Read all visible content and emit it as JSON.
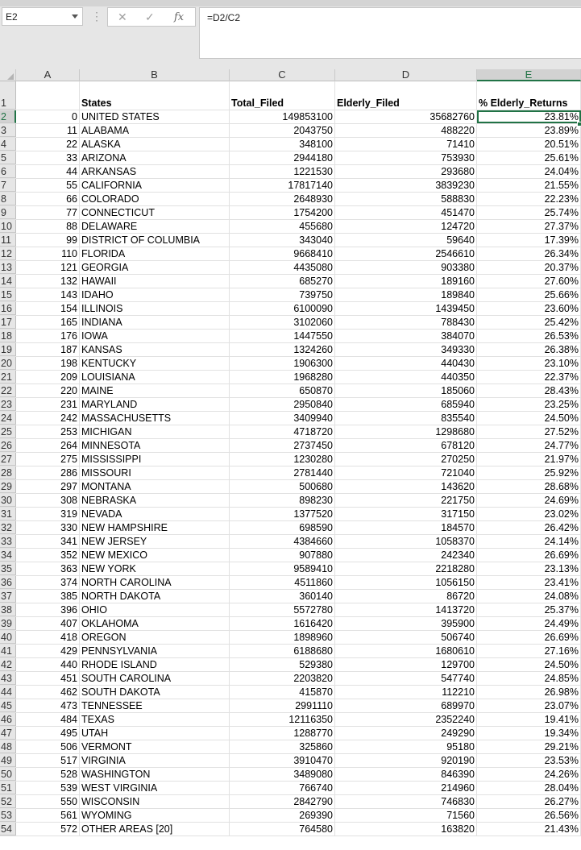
{
  "formula_bar": {
    "name_box": "E2",
    "formula": "=D2/C2",
    "cancel_icon": "✕",
    "enter_icon": "✓",
    "fx_label": "fx",
    "menu_icon": "⋮"
  },
  "columns": [
    "A",
    "B",
    "C",
    "D",
    "E"
  ],
  "active_column": "E",
  "active_row": 2,
  "header_row": {
    "row_number": "1",
    "A": "",
    "B": "States",
    "C": "Total_Filed",
    "D": "Elderly_Filed",
    "E": "% Elderly_Returns"
  },
  "rows": [
    {
      "n": "2",
      "a": "0",
      "b": "UNITED STATES",
      "c": "149853100",
      "d": "35682760",
      "e": "23.81%"
    },
    {
      "n": "3",
      "a": "11",
      "b": "ALABAMA",
      "c": "2043750",
      "d": "488220",
      "e": "23.89%"
    },
    {
      "n": "4",
      "a": "22",
      "b": "ALASKA",
      "c": "348100",
      "d": "71410",
      "e": "20.51%"
    },
    {
      "n": "5",
      "a": "33",
      "b": "ARIZONA",
      "c": "2944180",
      "d": "753930",
      "e": "25.61%"
    },
    {
      "n": "6",
      "a": "44",
      "b": "ARKANSAS",
      "c": "1221530",
      "d": "293680",
      "e": "24.04%"
    },
    {
      "n": "7",
      "a": "55",
      "b": "CALIFORNIA",
      "c": "17817140",
      "d": "3839230",
      "e": "21.55%"
    },
    {
      "n": "8",
      "a": "66",
      "b": "COLORADO",
      "c": "2648930",
      "d": "588830",
      "e": "22.23%"
    },
    {
      "n": "9",
      "a": "77",
      "b": "CONNECTICUT",
      "c": "1754200",
      "d": "451470",
      "e": "25.74%"
    },
    {
      "n": "10",
      "a": "88",
      "b": "DELAWARE",
      "c": "455680",
      "d": "124720",
      "e": "27.37%"
    },
    {
      "n": "11",
      "a": "99",
      "b": "DISTRICT OF COLUMBIA",
      "c": "343040",
      "d": "59640",
      "e": "17.39%"
    },
    {
      "n": "12",
      "a": "110",
      "b": "FLORIDA",
      "c": "9668410",
      "d": "2546610",
      "e": "26.34%"
    },
    {
      "n": "13",
      "a": "121",
      "b": "GEORGIA",
      "c": "4435080",
      "d": "903380",
      "e": "20.37%"
    },
    {
      "n": "14",
      "a": "132",
      "b": "HAWAII",
      "c": "685270",
      "d": "189160",
      "e": "27.60%"
    },
    {
      "n": "15",
      "a": "143",
      "b": "IDAHO",
      "c": "739750",
      "d": "189840",
      "e": "25.66%"
    },
    {
      "n": "16",
      "a": "154",
      "b": "ILLINOIS",
      "c": "6100090",
      "d": "1439450",
      "e": "23.60%"
    },
    {
      "n": "17",
      "a": "165",
      "b": "INDIANA",
      "c": "3102060",
      "d": "788430",
      "e": "25.42%"
    },
    {
      "n": "18",
      "a": "176",
      "b": "IOWA",
      "c": "1447550",
      "d": "384070",
      "e": "26.53%"
    },
    {
      "n": "19",
      "a": "187",
      "b": "KANSAS",
      "c": "1324260",
      "d": "349330",
      "e": "26.38%"
    },
    {
      "n": "20",
      "a": "198",
      "b": "KENTUCKY",
      "c": "1906300",
      "d": "440430",
      "e": "23.10%"
    },
    {
      "n": "21",
      "a": "209",
      "b": "LOUISIANA",
      "c": "1968280",
      "d": "440350",
      "e": "22.37%"
    },
    {
      "n": "22",
      "a": "220",
      "b": "MAINE",
      "c": "650870",
      "d": "185060",
      "e": "28.43%"
    },
    {
      "n": "23",
      "a": "231",
      "b": "MARYLAND",
      "c": "2950840",
      "d": "685940",
      "e": "23.25%"
    },
    {
      "n": "24",
      "a": "242",
      "b": "MASSACHUSETTS",
      "c": "3409940",
      "d": "835540",
      "e": "24.50%"
    },
    {
      "n": "25",
      "a": "253",
      "b": "MICHIGAN",
      "c": "4718720",
      "d": "1298680",
      "e": "27.52%"
    },
    {
      "n": "26",
      "a": "264",
      "b": "MINNESOTA",
      "c": "2737450",
      "d": "678120",
      "e": "24.77%"
    },
    {
      "n": "27",
      "a": "275",
      "b": "MISSISSIPPI",
      "c": "1230280",
      "d": "270250",
      "e": "21.97%"
    },
    {
      "n": "28",
      "a": "286",
      "b": "MISSOURI",
      "c": "2781440",
      "d": "721040",
      "e": "25.92%"
    },
    {
      "n": "29",
      "a": "297",
      "b": "MONTANA",
      "c": "500680",
      "d": "143620",
      "e": "28.68%"
    },
    {
      "n": "30",
      "a": "308",
      "b": "NEBRASKA",
      "c": "898230",
      "d": "221750",
      "e": "24.69%"
    },
    {
      "n": "31",
      "a": "319",
      "b": "NEVADA",
      "c": "1377520",
      "d": "317150",
      "e": "23.02%"
    },
    {
      "n": "32",
      "a": "330",
      "b": "NEW HAMPSHIRE",
      "c": "698590",
      "d": "184570",
      "e": "26.42%"
    },
    {
      "n": "33",
      "a": "341",
      "b": "NEW JERSEY",
      "c": "4384660",
      "d": "1058370",
      "e": "24.14%"
    },
    {
      "n": "34",
      "a": "352",
      "b": "NEW MEXICO",
      "c": "907880",
      "d": "242340",
      "e": "26.69%"
    },
    {
      "n": "35",
      "a": "363",
      "b": "NEW YORK",
      "c": "9589410",
      "d": "2218280",
      "e": "23.13%"
    },
    {
      "n": "36",
      "a": "374",
      "b": "NORTH CAROLINA",
      "c": "4511860",
      "d": "1056150",
      "e": "23.41%"
    },
    {
      "n": "37",
      "a": "385",
      "b": "NORTH DAKOTA",
      "c": "360140",
      "d": "86720",
      "e": "24.08%"
    },
    {
      "n": "38",
      "a": "396",
      "b": "OHIO",
      "c": "5572780",
      "d": "1413720",
      "e": "25.37%"
    },
    {
      "n": "39",
      "a": "407",
      "b": "OKLAHOMA",
      "c": "1616420",
      "d": "395900",
      "e": "24.49%"
    },
    {
      "n": "40",
      "a": "418",
      "b": "OREGON",
      "c": "1898960",
      "d": "506740",
      "e": "26.69%"
    },
    {
      "n": "41",
      "a": "429",
      "b": "PENNSYLVANIA",
      "c": "6188680",
      "d": "1680610",
      "e": "27.16%"
    },
    {
      "n": "42",
      "a": "440",
      "b": "RHODE ISLAND",
      "c": "529380",
      "d": "129700",
      "e": "24.50%"
    },
    {
      "n": "43",
      "a": "451",
      "b": "SOUTH CAROLINA",
      "c": "2203820",
      "d": "547740",
      "e": "24.85%"
    },
    {
      "n": "44",
      "a": "462",
      "b": "SOUTH DAKOTA",
      "c": "415870",
      "d": "112210",
      "e": "26.98%"
    },
    {
      "n": "45",
      "a": "473",
      "b": "TENNESSEE",
      "c": "2991110",
      "d": "689970",
      "e": "23.07%"
    },
    {
      "n": "46",
      "a": "484",
      "b": "TEXAS",
      "c": "12116350",
      "d": "2352240",
      "e": "19.41%"
    },
    {
      "n": "47",
      "a": "495",
      "b": "UTAH",
      "c": "1288770",
      "d": "249290",
      "e": "19.34%"
    },
    {
      "n": "48",
      "a": "506",
      "b": "VERMONT",
      "c": "325860",
      "d": "95180",
      "e": "29.21%"
    },
    {
      "n": "49",
      "a": "517",
      "b": "VIRGINIA",
      "c": "3910470",
      "d": "920190",
      "e": "23.53%"
    },
    {
      "n": "50",
      "a": "528",
      "b": "WASHINGTON",
      "c": "3489080",
      "d": "846390",
      "e": "24.26%"
    },
    {
      "n": "51",
      "a": "539",
      "b": "WEST VIRGINIA",
      "c": "766740",
      "d": "214960",
      "e": "28.04%"
    },
    {
      "n": "52",
      "a": "550",
      "b": "WISCONSIN",
      "c": "2842790",
      "d": "746830",
      "e": "26.27%"
    },
    {
      "n": "53",
      "a": "561",
      "b": "WYOMING",
      "c": "269390",
      "d": "71560",
      "e": "26.56%"
    },
    {
      "n": "54",
      "a": "572",
      "b": "OTHER AREAS [20]",
      "c": "764580",
      "d": "163820",
      "e": "21.43%"
    }
  ],
  "colors": {
    "accent": "#217346",
    "header_bg": "#e6e6e6",
    "gridline": "#e1e1e1"
  }
}
